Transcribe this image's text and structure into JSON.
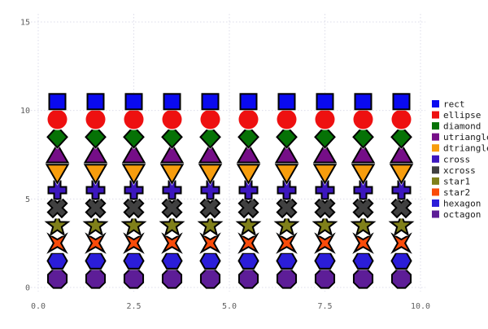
{
  "chart_data": {
    "type": "scatter",
    "title": "",
    "xlabel": "",
    "ylabel": "",
    "x": [
      0.5,
      1.5,
      2.5,
      3.5,
      4.5,
      5.5,
      6.5,
      7.5,
      8.5,
      9.5
    ],
    "series": [
      {
        "name": "rect",
        "marker": "rect",
        "y": 10.5,
        "color": "#0a0af0"
      },
      {
        "name": "ellipse",
        "marker": "ellipse",
        "y": 9.5,
        "color": "#ee1010"
      },
      {
        "name": "diamond",
        "marker": "diamond",
        "y": 8.5,
        "color": "#067206"
      },
      {
        "name": "utriangle",
        "marker": "utriangle",
        "y": 7.5,
        "color": "#750e87"
      },
      {
        "name": "dtriangle",
        "marker": "dtriangle",
        "y": 6.5,
        "color": "#f79d0d"
      },
      {
        "name": "cross",
        "marker": "cross",
        "y": 5.5,
        "color": "#3c17be"
      },
      {
        "name": "xcross",
        "marker": "xcross",
        "y": 4.5,
        "color": "#404040"
      },
      {
        "name": "star1",
        "marker": "star1",
        "y": 3.5,
        "color": "#80801a"
      },
      {
        "name": "star2",
        "marker": "star2",
        "y": 2.5,
        "color": "#fa4b0a"
      },
      {
        "name": "hexagon",
        "marker": "hexagon",
        "y": 1.5,
        "color": "#2b1dd9"
      },
      {
        "name": "octagon",
        "marker": "octagon",
        "y": 0.5,
        "color": "#5d1d97"
      }
    ],
    "xticks": {
      "values": [
        0,
        2.5,
        5,
        7.5,
        10
      ],
      "labels": [
        "0.0",
        "2.5",
        "5.0",
        "7.5",
        "10.0"
      ]
    },
    "yticks": {
      "values": [
        0,
        5,
        10,
        15
      ],
      "labels": [
        "0",
        "5",
        "10",
        "15"
      ]
    },
    "xlim": [
      -0.2,
      10.15
    ],
    "ylim": [
      -0.25,
      15.5
    ],
    "grid": {
      "style": "dashed",
      "color": "#dcdce9"
    },
    "legend": {
      "position": "right"
    },
    "marker_outline_color": "#000000",
    "marker_halo_color": "#ffffff",
    "tick_label_color": "#5f5f5f",
    "legend_text_color": "#1a1a1a",
    "background_color": "#ffffff"
  }
}
